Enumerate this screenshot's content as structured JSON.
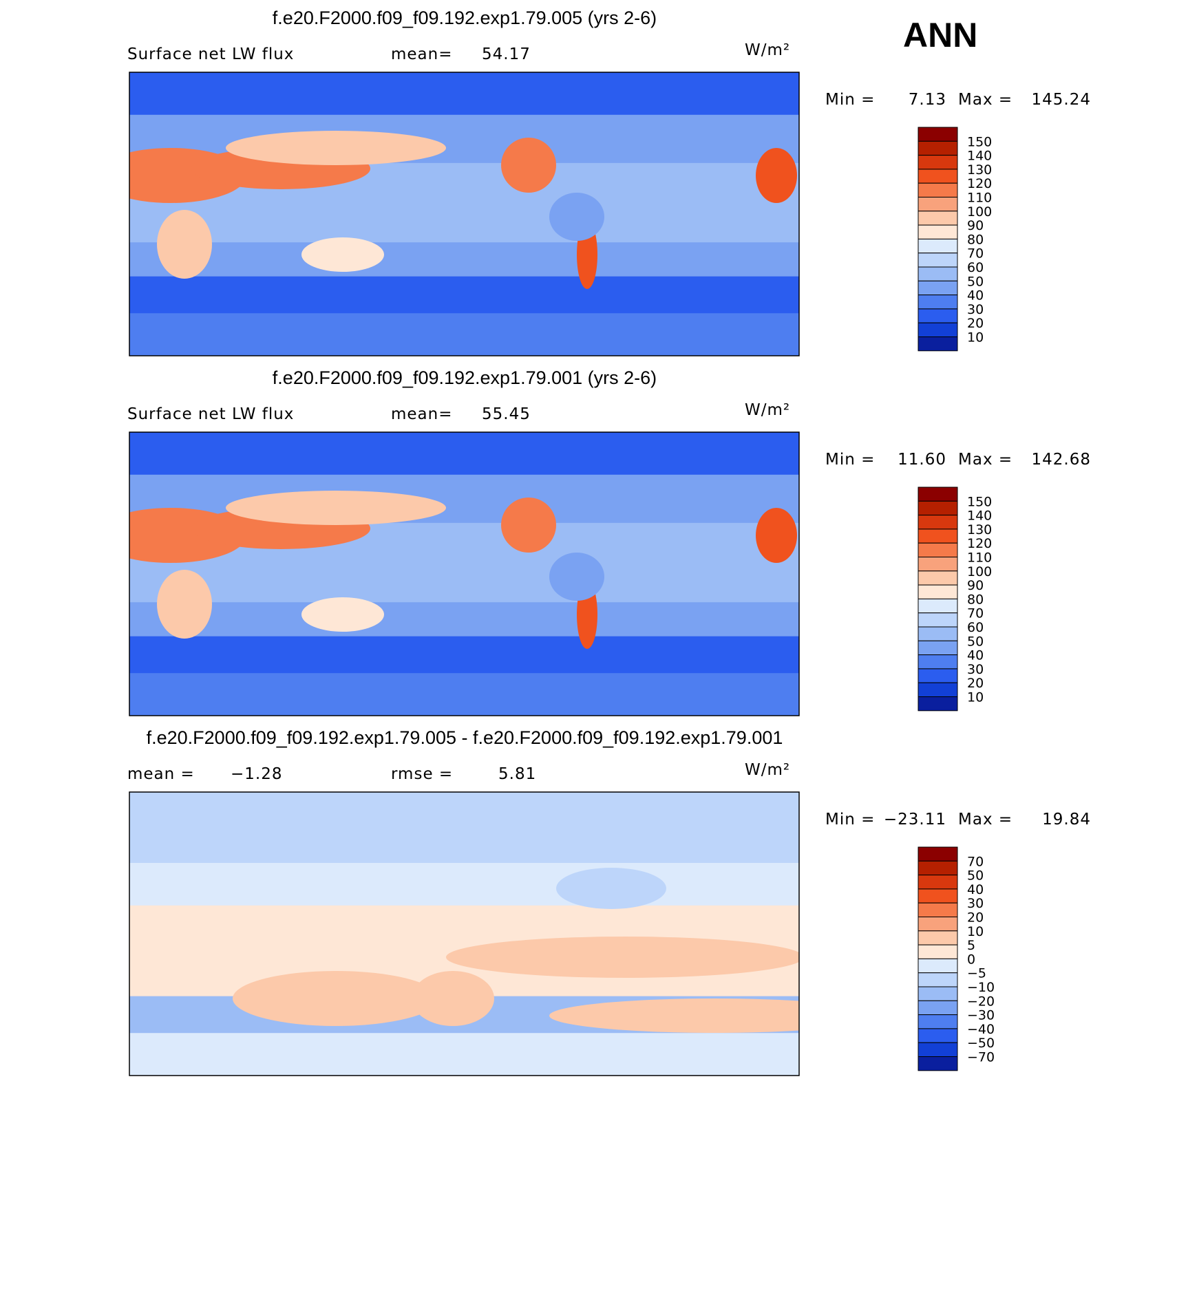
{
  "header": {
    "season": "ANN"
  },
  "panels": [
    {
      "title": "f.e20.F2000.f09_f09.192.exp1.79.005 (yrs 2-6)",
      "variable": "Surface net LW flux",
      "stat1_label": "mean=",
      "stat1": "54.17",
      "units": "W/m²",
      "min_label": "Min =",
      "min": "7.13",
      "max_label": "Max =",
      "max": "145.24",
      "colorbar": {
        "levels": [
          "150",
          "140",
          "130",
          "120",
          "110",
          "100",
          "90",
          "80",
          "70",
          "60",
          "50",
          "40",
          "30",
          "20",
          "10"
        ],
        "colors": [
          "#8b0000",
          "#b52000",
          "#d8380e",
          "#f0521e",
          "#f57a4a",
          "#f8a27c",
          "#fcc9aa",
          "#fee7d6",
          "#dceafc",
          "#bdd5fa",
          "#9bbcf5",
          "#7aa2f2",
          "#4e7ef0",
          "#2b5def",
          "#1240d6",
          "#0a1f9e"
        ]
      }
    },
    {
      "title": "f.e20.F2000.f09_f09.192.exp1.79.001 (yrs 2-6)",
      "variable": "Surface net LW flux",
      "stat1_label": "mean=",
      "stat1": "55.45",
      "units": "W/m²",
      "min_label": "Min =",
      "min": "11.60",
      "max_label": "Max =",
      "max": "142.68",
      "colorbar": {
        "levels": [
          "150",
          "140",
          "130",
          "120",
          "110",
          "100",
          "90",
          "80",
          "70",
          "60",
          "50",
          "40",
          "30",
          "20",
          "10"
        ],
        "colors": [
          "#8b0000",
          "#b52000",
          "#d8380e",
          "#f0521e",
          "#f57a4a",
          "#f8a27c",
          "#fcc9aa",
          "#fee7d6",
          "#dceafc",
          "#bdd5fa",
          "#9bbcf5",
          "#7aa2f2",
          "#4e7ef0",
          "#2b5def",
          "#1240d6",
          "#0a1f9e"
        ]
      }
    },
    {
      "title": "f.e20.F2000.f09_f09.192.exp1.79.005 - f.e20.F2000.f09_f09.192.exp1.79.001",
      "stat1_label": "mean =",
      "stat1": "−1.28",
      "stat2_label": "rmse =",
      "stat2": "5.81",
      "units": "W/m²",
      "min_label": "Min =",
      "min": "−23.11",
      "max_label": "Max =",
      "max": "19.84",
      "colorbar": {
        "levels": [
          "70",
          "50",
          "40",
          "30",
          "20",
          "10",
          "5",
          "0",
          "−5",
          "−10",
          "−20",
          "−30",
          "−40",
          "−50",
          "−70"
        ],
        "colors": [
          "#8b0000",
          "#b52000",
          "#d8380e",
          "#f0521e",
          "#f57a4a",
          "#f8a27c",
          "#fcc9aa",
          "#fee7d6",
          "#dceafc",
          "#bdd5fa",
          "#9bbcf5",
          "#7aa2f2",
          "#4e7ef0",
          "#2b5def",
          "#1240d6",
          "#0a1f9e"
        ]
      }
    }
  ]
}
